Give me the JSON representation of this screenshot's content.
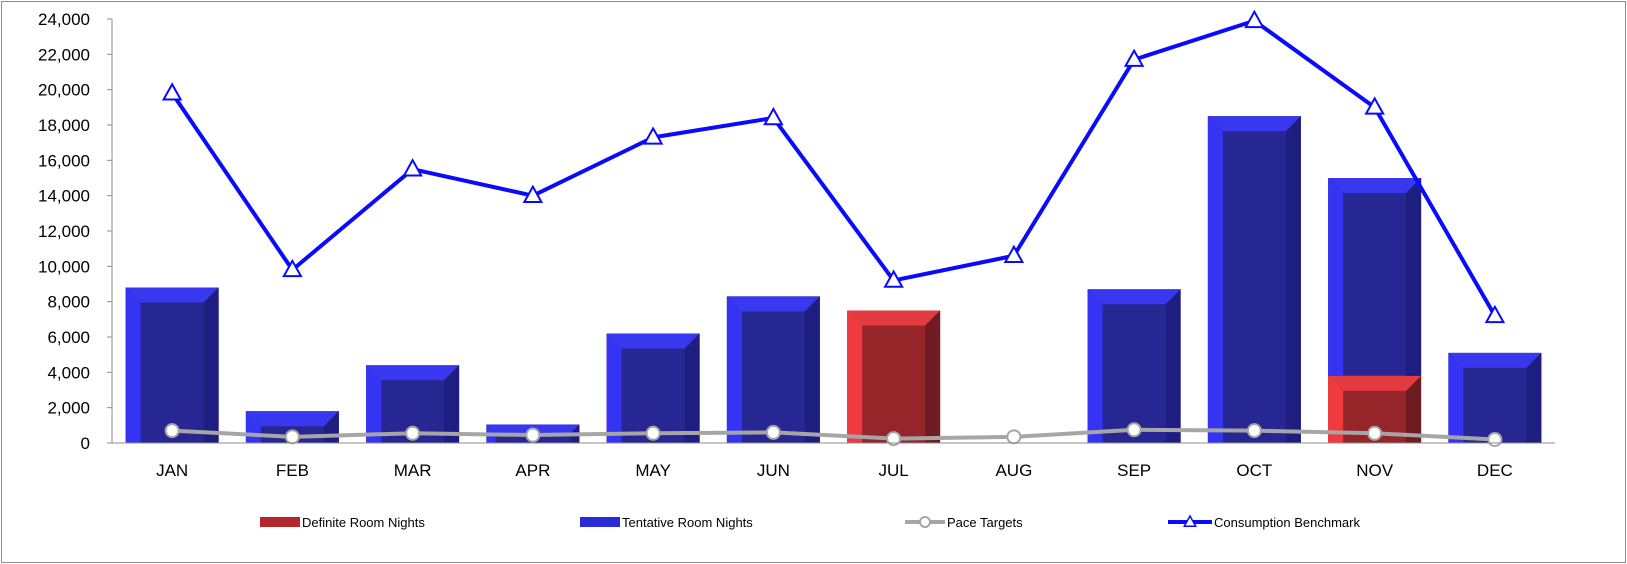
{
  "chart_data": {
    "type": "bar",
    "categories": [
      "JAN",
      "FEB",
      "MAR",
      "APR",
      "MAY",
      "JUN",
      "JUL",
      "AUG",
      "SEP",
      "OCT",
      "NOV",
      "DEC"
    ],
    "series": [
      {
        "name": "Definite Room Nights",
        "kind": "bar",
        "color": "#c0262b",
        "values": [
          0,
          0,
          0,
          0,
          0,
          0,
          7500,
          0,
          0,
          0,
          3800,
          0
        ]
      },
      {
        "name": "Tentative Room Nights",
        "kind": "bar",
        "color": "#2b2bd6",
        "values": [
          8800,
          1800,
          4400,
          1050,
          6200,
          8300,
          0,
          0,
          8700,
          18500,
          11200,
          5100
        ]
      },
      {
        "name": "Pace Targets",
        "kind": "line",
        "color": "#a6a6a6",
        "marker": "circle",
        "values": [
          700,
          350,
          550,
          450,
          550,
          600,
          250,
          350,
          750,
          700,
          550,
          200
        ]
      },
      {
        "name": "Consumption Benchmark",
        "kind": "line",
        "color": "#0a0aff",
        "marker": "triangle",
        "values": [
          19800,
          9800,
          15500,
          14000,
          17300,
          18400,
          9200,
          10600,
          21700,
          23900,
          19000,
          7200
        ]
      }
    ],
    "stacked": true,
    "ylim": [
      0,
      24000
    ],
    "yticks": [
      "0",
      "2,000",
      "4,000",
      "6,000",
      "8,000",
      "10,000",
      "12,000",
      "14,000",
      "16,000",
      "18,000",
      "20,000",
      "22,000",
      "24,000"
    ],
    "title": "",
    "xlabel": "",
    "ylabel": "",
    "grid": false,
    "legend_position": "bottom"
  }
}
